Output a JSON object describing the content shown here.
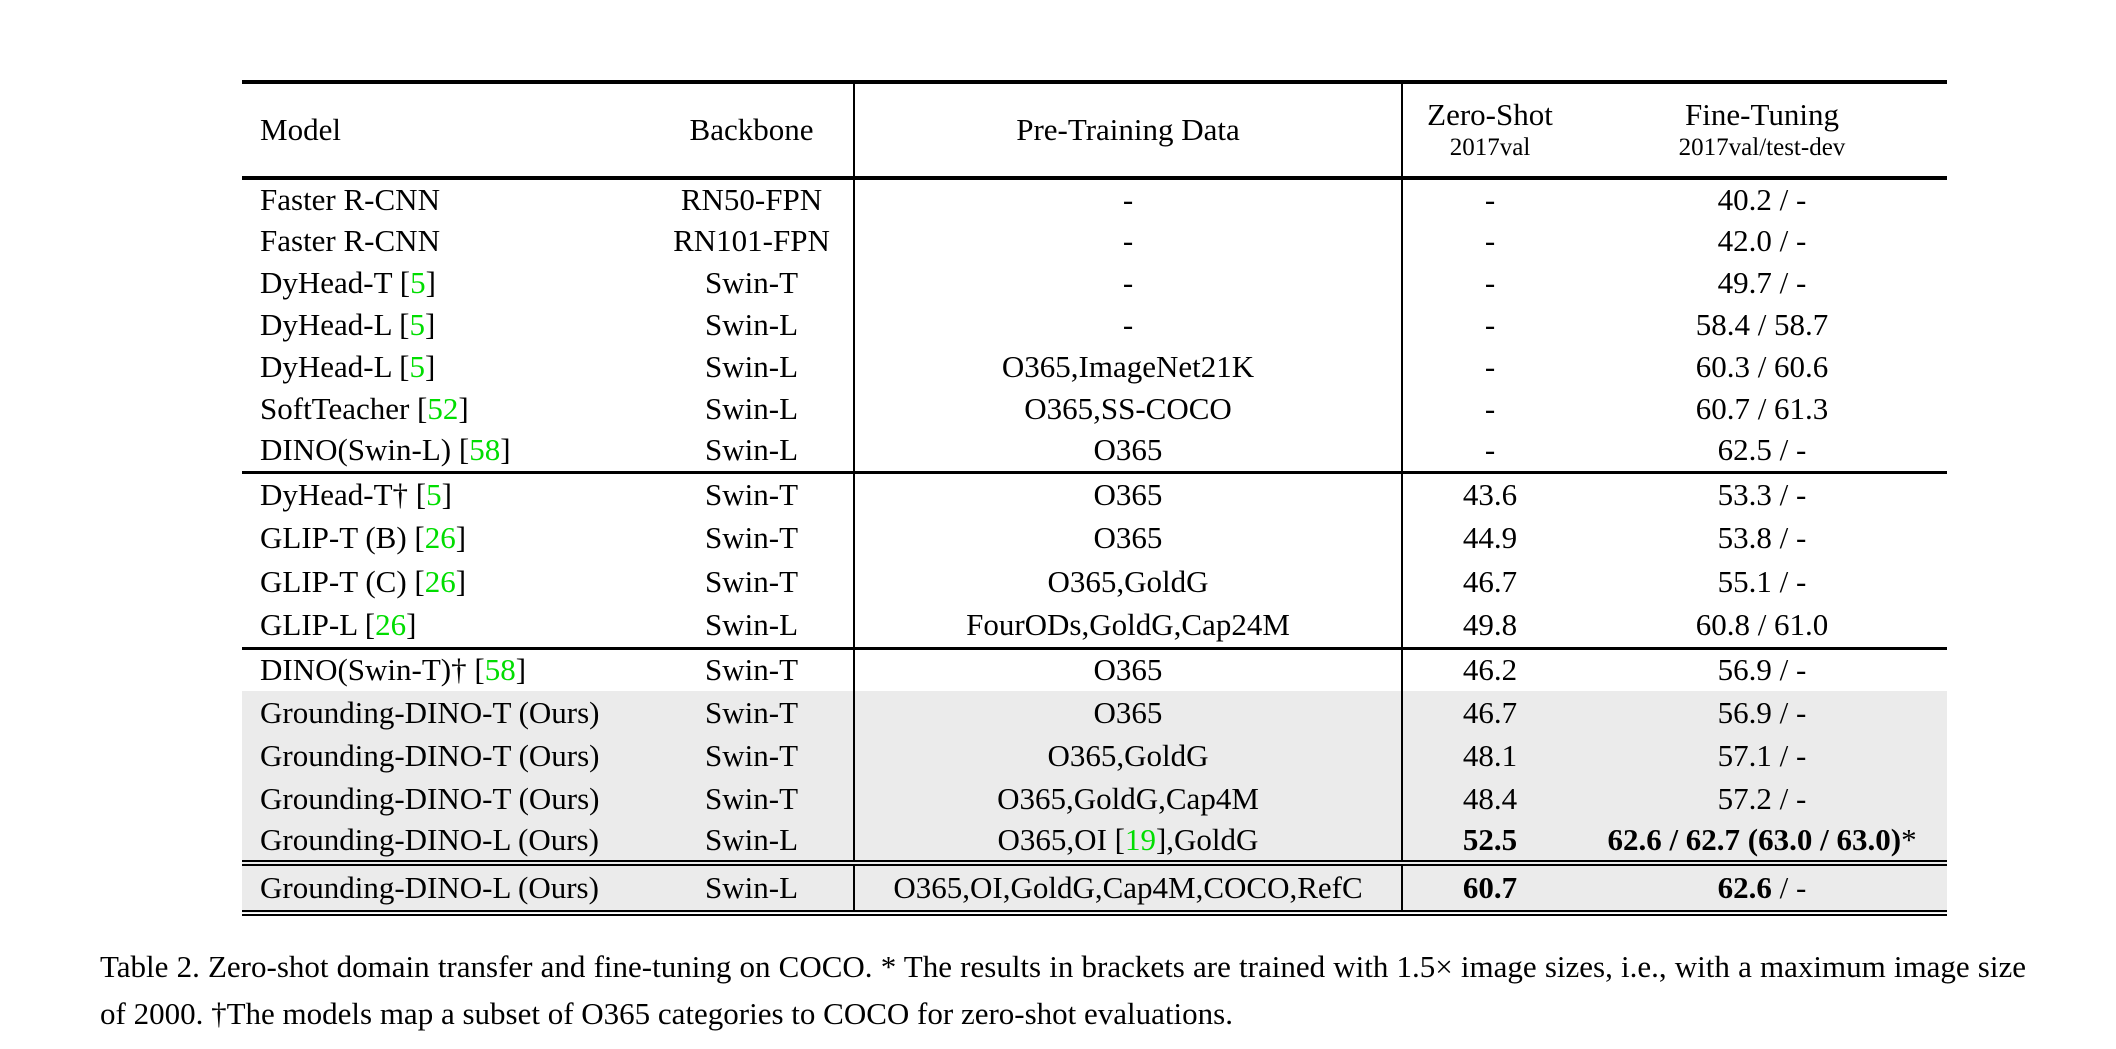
{
  "colors": {
    "highlight": "#ebebeb",
    "citation_green": "#00dd00",
    "rule_black": "#000000",
    "background": "#ffffff"
  },
  "header": {
    "model": "Model",
    "backbone": "Backbone",
    "pretrain": "Pre-Training Data",
    "zeroshot": {
      "label": "Zero-Shot",
      "sublabel": "2017val"
    },
    "finetune": {
      "label": "Fine-Tuning",
      "sublabel": "2017val/test-dev"
    }
  },
  "groups": [
    {
      "rows": [
        {
          "model": "Faster R-CNN",
          "backbone": "RN50-FPN",
          "pretrain": "-",
          "zeroshot": "-",
          "finetune": "40.2 / -",
          "highlight": false
        },
        {
          "model": "Faster R-CNN",
          "backbone": "RN101-FPN",
          "pretrain": "-",
          "zeroshot": "-",
          "finetune": "42.0 / -",
          "highlight": false
        },
        {
          "model": "DyHead-T [5]",
          "backbone": "Swin-T",
          "pretrain": "-",
          "zeroshot": "-",
          "finetune": "49.7 / -",
          "highlight": false
        },
        {
          "model": "DyHead-L [5]",
          "backbone": "Swin-L",
          "pretrain": "-",
          "zeroshot": "-",
          "finetune": "58.4 / 58.7",
          "highlight": false
        },
        {
          "model": "DyHead-L [5]",
          "backbone": "Swin-L",
          "pretrain": "O365,ImageNet21K",
          "zeroshot": "-",
          "finetune": "60.3 / 60.6",
          "highlight": false
        },
        {
          "model": "SoftTeacher [52]",
          "backbone": "Swin-L",
          "pretrain": "O365,SS-COCO",
          "zeroshot": "-",
          "finetune": "60.7 / 61.3",
          "highlight": false
        },
        {
          "model": "DINO(Swin-L) [58]",
          "backbone": "Swin-L",
          "pretrain": "O365",
          "zeroshot": "-",
          "finetune": "62.5 / -",
          "highlight": false
        }
      ]
    },
    {
      "rows": [
        {
          "model": "DyHead-T† [5]",
          "backbone": "Swin-T",
          "pretrain": "O365",
          "zeroshot": "43.6",
          "finetune": "53.3 / -",
          "highlight": false
        },
        {
          "model": "GLIP-T (B) [26]",
          "backbone": "Swin-T",
          "pretrain": "O365",
          "zeroshot": "44.9",
          "finetune": "53.8 / -",
          "highlight": false
        },
        {
          "model": "GLIP-T (C) [26]",
          "backbone": "Swin-T",
          "pretrain": "O365,GoldG",
          "zeroshot": "46.7",
          "finetune": "55.1 / -",
          "highlight": false
        },
        {
          "model": "GLIP-L [26]",
          "backbone": "Swin-L",
          "pretrain": "FourODs,GoldG,Cap24M",
          "zeroshot": "49.8",
          "finetune": "60.8 / 61.0",
          "highlight": false
        }
      ]
    },
    {
      "rows": [
        {
          "model": "DINO(Swin-T)† [58]",
          "backbone": "Swin-T",
          "pretrain": "O365",
          "zeroshot": "46.2",
          "finetune": "56.9 / -",
          "highlight": false
        },
        {
          "model": "Grounding-DINO-T (Ours)",
          "backbone": "Swin-T",
          "pretrain": "O365",
          "zeroshot": "46.7",
          "finetune": "56.9 / -",
          "highlight": true
        },
        {
          "model": "Grounding-DINO-T (Ours)",
          "backbone": "Swin-T",
          "pretrain": "O365,GoldG",
          "zeroshot": "48.1",
          "finetune": "57.1 / -",
          "highlight": true
        },
        {
          "model": "Grounding-DINO-T (Ours)",
          "backbone": "Swin-T",
          "pretrain": "O365,GoldG,Cap4M",
          "zeroshot": "48.4",
          "finetune": "57.2 / -",
          "highlight": true
        },
        {
          "model": "Grounding-DINO-L (Ours)",
          "backbone": "Swin-L",
          "pretrain": "O365,OI [19],GoldG",
          "zeroshot": [
            {
              "t": "52.5",
              "b": true
            }
          ],
          "finetune": [
            {
              "t": "62.6 / 62.7 (63.0 / 63.0)",
              "b": true
            },
            {
              "t": "*",
              "b": false
            }
          ],
          "highlight": true
        }
      ]
    },
    {
      "rows": [
        {
          "model": "Grounding-DINO-L (Ours)",
          "backbone": "Swin-L",
          "pretrain": "O365,OI,GoldG,Cap4M,COCO,RefC",
          "zeroshot": [
            {
              "t": "60.7",
              "b": true
            }
          ],
          "finetune": [
            {
              "t": "62.6",
              "b": true
            },
            {
              "t": " / -",
              "b": false
            }
          ],
          "highlight": true
        }
      ]
    }
  ],
  "caption": "Table 2.  Zero-shot domain transfer and fine-tuning on COCO. * The results in brackets are trained with 1.5× image sizes, i.e., with a maximum image size of 2000. †The models map a subset of O365 categories to COCO for zero-shot evaluations."
}
